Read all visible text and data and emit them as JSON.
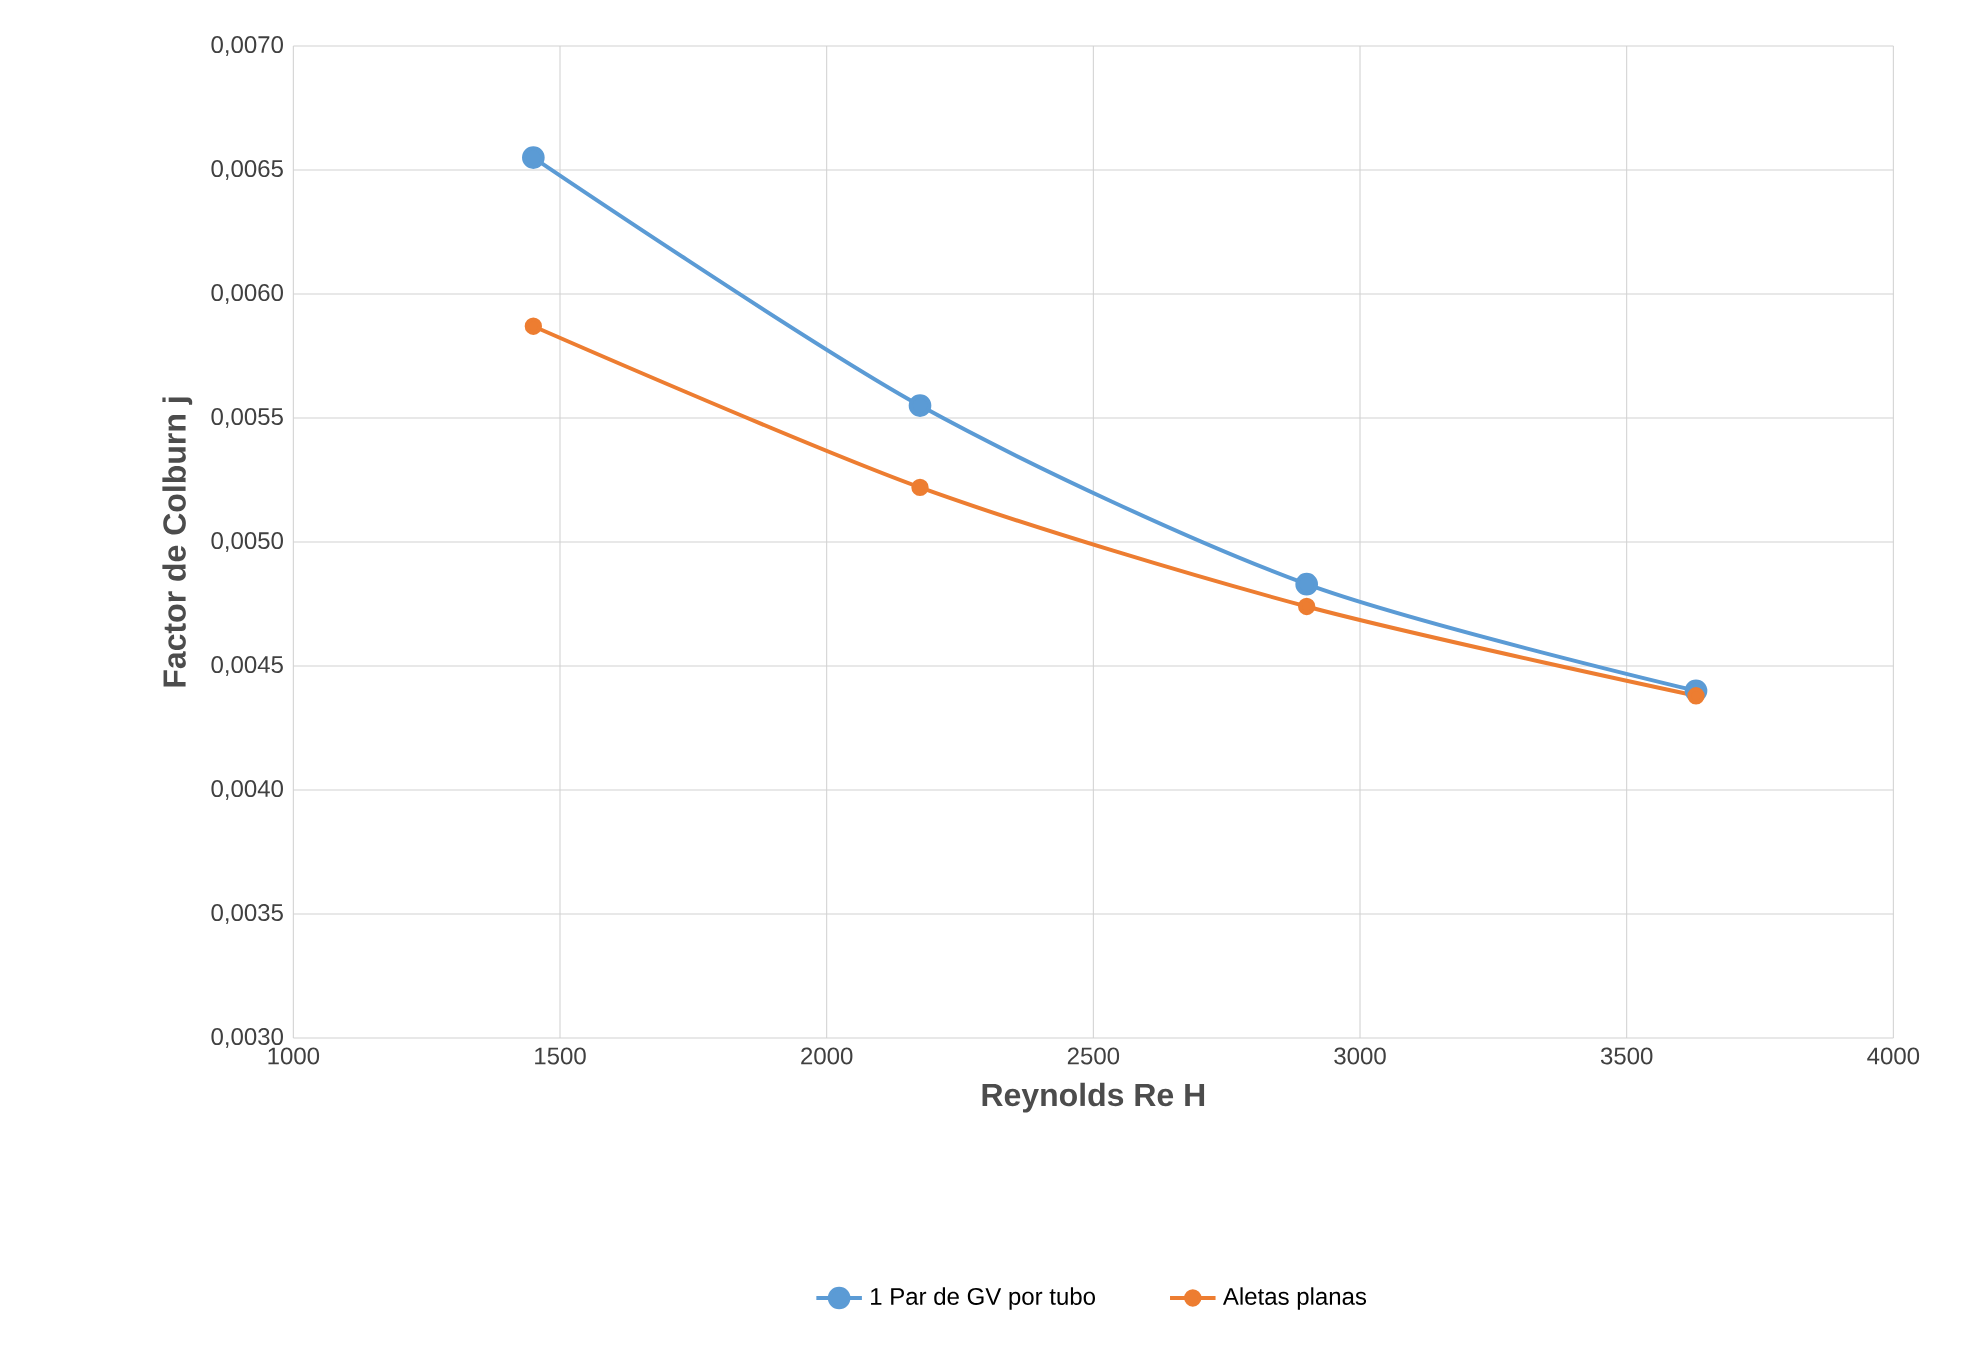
{
  "chart_data": {
    "type": "line",
    "xlabel": "Reynolds Re H",
    "ylabel": "Factor de Colburn j",
    "x": [
      1450,
      2175,
      2900,
      3630
    ],
    "series": [
      {
        "name": "1 Par de GV por tubo",
        "color": "#5b9bd5",
        "values": [
          0.00655,
          0.00555,
          0.00483,
          0.0044
        ]
      },
      {
        "name": "Aletas planas",
        "color": "#ed7d31",
        "values": [
          0.00587,
          0.00522,
          0.00474,
          0.00438
        ]
      }
    ],
    "xlim": [
      1000,
      4000
    ],
    "xticks": [
      1000,
      1500,
      2000,
      2500,
      3000,
      3500,
      4000
    ],
    "ylim": [
      0.003,
      0.007
    ],
    "yticks": [
      {
        "value": 0.003,
        "label": "0,0030"
      },
      {
        "value": 0.0035,
        "label": "0,0035"
      },
      {
        "value": 0.004,
        "label": "0,0040"
      },
      {
        "value": 0.0045,
        "label": "0,0045"
      },
      {
        "value": 0.005,
        "label": "0,0050"
      },
      {
        "value": 0.0055,
        "label": "0,0055"
      },
      {
        "value": 0.006,
        "label": "0,0060"
      },
      {
        "value": 0.0065,
        "label": "0,0065"
      },
      {
        "value": 0.007,
        "label": "0,0070"
      }
    ],
    "grid": true,
    "legend": "bottom",
    "marker": "circle",
    "line_style": "solid"
  }
}
